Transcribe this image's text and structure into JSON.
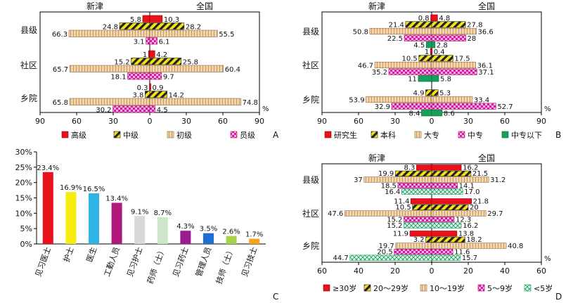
{
  "panel_labels": [
    "A",
    "B",
    "C",
    "D"
  ],
  "colors": {
    "red": "#e8111c",
    "yellow": "#f7e21a",
    "stripe": "#222222",
    "bisque": "#f9d3a8",
    "bisque_line": "#8a6a3a",
    "pink": "#f27ac8",
    "green": "#16a05a",
    "blue": "#2f7fd6"
  },
  "chart_data": [
    {
      "panel": "A",
      "type": "bar",
      "orientation": "diverging-horizontal",
      "left_label": "新津",
      "right_label": "全国",
      "groups": [
        "县级",
        "社区",
        "乡院"
      ],
      "xlim": [
        -90,
        90
      ],
      "ticks": [
        "90",
        "60",
        "30",
        "0",
        "30",
        "60",
        "90"
      ],
      "tick_values": [
        -90,
        -60,
        -30,
        0,
        30,
        60,
        90
      ],
      "unit": "%",
      "series": [
        {
          "name": "高级",
          "pattern": "red",
          "left": [
            5.8,
            1,
            0.3
          ],
          "right": [
            10.3,
            4.2,
            0.9
          ]
        },
        {
          "name": "中级",
          "pattern": "hatch",
          "left": [
            24.8,
            15.2,
            3.8
          ],
          "right": [
            28.2,
            25.8,
            14.2
          ]
        },
        {
          "name": "初级",
          "pattern": "bisque",
          "left": [
            66.3,
            65.7,
            65.8
          ],
          "right": [
            55.5,
            60.4,
            74.8
          ]
        },
        {
          "name": "员级",
          "pattern": "checker",
          "left": [
            3.1,
            18.1,
            30.2
          ],
          "right": [
            6.1,
            9.7,
            4.5
          ]
        }
      ],
      "left_labels": [
        [
          "5.8",
          "24.8",
          "66.3",
          "3.1"
        ],
        [
          "1",
          "15.2",
          "65.7",
          "18.1"
        ],
        [
          "0.3",
          "3.8",
          "65.8",
          "30.2"
        ]
      ],
      "right_labels": [
        [
          "10.3",
          "28.2",
          "55.5",
          "6.1"
        ],
        [
          "4.2",
          "25.8",
          "60.4",
          "9.7"
        ],
        [
          "0.9",
          "14.2",
          "74.8",
          "4.5"
        ]
      ]
    },
    {
      "panel": "B",
      "type": "bar",
      "orientation": "diverging-horizontal",
      "left_label": "新津",
      "right_label": "全国",
      "groups": [
        "县级",
        "社区",
        "乡院"
      ],
      "xlim": [
        -90,
        90
      ],
      "ticks": [
        "90",
        "60",
        "30",
        "0",
        "30",
        "60",
        "90"
      ],
      "tick_values": [
        -90,
        -60,
        -30,
        0,
        30,
        60,
        90
      ],
      "unit": "%",
      "series": [
        {
          "name": "研究生",
          "pattern": "red",
          "left": [
            0.8,
            1,
            0
          ],
          "right": [
            4.8,
            0.4,
            0
          ]
        },
        {
          "name": "本科",
          "pattern": "hatch",
          "left": [
            21.4,
            10.5,
            4.9
          ],
          "right": [
            27.8,
            17.5,
            5.3
          ]
        },
        {
          "name": "大专",
          "pattern": "bisque",
          "left": [
            50.8,
            46.7,
            53.9
          ],
          "right": [
            36.6,
            36.1,
            33.4
          ]
        },
        {
          "name": "中专",
          "pattern": "checker",
          "left": [
            22.5,
            35.2,
            32.9
          ],
          "right": [
            28,
            37.1,
            52.7
          ]
        },
        {
          "name": "中专以下",
          "pattern": "green",
          "left": [
            4.5,
            11,
            8.4
          ],
          "right": [
            2.8,
            5.8,
            8.6
          ]
        }
      ],
      "left_labels": [
        [
          "0.8",
          "21.4",
          "50.8",
          "22.5",
          "4.5"
        ],
        [
          "1",
          "10.5",
          "46.7",
          "35.2",
          "11"
        ],
        [
          "",
          "4.9",
          "53.9",
          "32.9",
          "8.4"
        ]
      ],
      "right_labels": [
        [
          "4.8",
          "27.8",
          "36.6",
          "28",
          "2.8"
        ],
        [
          "0.4",
          "17.5",
          "36.1",
          "37.1",
          "5.8"
        ],
        [
          "",
          "5.3",
          "33.4",
          "52.7",
          "8.6"
        ]
      ]
    },
    {
      "panel": "C",
      "type": "bar",
      "categories": [
        "见习医士",
        "护士",
        "医生",
        "工勤人员",
        "见习护士",
        "药师（士）",
        "见习药士",
        "管理人员",
        "技师（士）",
        "见习技士"
      ],
      "values": [
        23.4,
        16.9,
        16.5,
        13.4,
        9.1,
        8.7,
        4.3,
        3.5,
        2.6,
        1.7
      ],
      "value_labels": [
        "23.4%",
        "16.9%",
        "16.5%",
        "13.4%",
        "9.1%",
        "8.7%",
        "4.3%",
        "3.5%",
        "2.6%",
        "1.7%"
      ],
      "bar_colors": [
        "#e8111c",
        "#f7ec10",
        "#2fb4e8",
        "#b0187c",
        "#d8d8d8",
        "#cde6c8",
        "#9a1c8c",
        "#1f6fd0",
        "#a8d24a",
        "#f7a21c"
      ],
      "ylim": [
        0,
        30
      ],
      "yticks": [
        "0%",
        "5%",
        "10%",
        "15%",
        "20%",
        "25%",
        "30%"
      ]
    },
    {
      "panel": "D",
      "type": "bar",
      "orientation": "diverging-horizontal",
      "left_label": "新津",
      "right_label": "全国",
      "groups": [
        "县级",
        "社区",
        "乡院"
      ],
      "xlim": [
        -60,
        60
      ],
      "ticks": [
        "60",
        "40",
        "20",
        "0",
        "20",
        "40",
        "60"
      ],
      "tick_values": [
        -60,
        -40,
        -20,
        0,
        20,
        40,
        60
      ],
      "unit": "%",
      "series": [
        {
          "name": "≥30岁",
          "pattern": "red",
          "left": [
            8.3,
            11.4,
            11.9
          ],
          "right": [
            16.2,
            21.8,
            13.8
          ]
        },
        {
          "name": "20～29岁",
          "pattern": "hatch",
          "left": [
            19.9,
            10.5,
            3.2
          ],
          "right": [
            21.5,
            20,
            18.2
          ]
        },
        {
          "name": "10～19岁",
          "pattern": "bisque",
          "left": [
            37,
            47.6,
            19.7
          ],
          "right": [
            31.2,
            29.7,
            40.8
          ]
        },
        {
          "name": "5～9岁",
          "pattern": "checker",
          "left": [
            18.5,
            15.2,
            20.5
          ],
          "right": [
            14.1,
            12.3,
            11.6
          ]
        },
        {
          "name": "<5岁",
          "pattern": "diamond",
          "left": [
            16.4,
            15.2,
            44.7
          ],
          "right": [
            17,
            16.2,
            15.7
          ]
        }
      ],
      "left_labels": [
        [
          "8.3",
          "19.9",
          "37",
          "18.5",
          "16.4"
        ],
        [
          "11.4",
          "10.5",
          "47.6",
          "15.2",
          "15.2"
        ],
        [
          "11.9",
          "3.2",
          "19.7",
          "20.5",
          "44.7"
        ]
      ],
      "right_labels": [
        [
          "16.2",
          "21.5",
          "31.2",
          "14.1",
          "17.0"
        ],
        [
          "21.8",
          "20",
          "29.7",
          "12.3",
          "16.2"
        ],
        [
          "13.8",
          "18.2",
          "40.8",
          "11.6",
          "15.7"
        ]
      ]
    }
  ]
}
